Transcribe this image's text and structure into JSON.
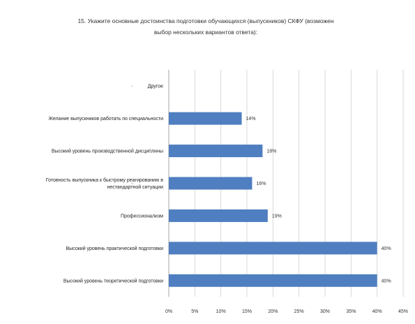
{
  "chart_data": {
    "type": "bar",
    "orientation": "horizontal",
    "title_line1": "15. Укажите основные достоинства подготовки обучающихся (выпускников) СКФУ (возможен",
    "title_line2": "выбор нескольких вариантов ответа):",
    "categories": [
      "Другое",
      "Желание выпускников работать по специальности",
      "Высокий уровень производственной дисциплины",
      [
        "Готовность выпускника к быстрому реагированию в",
        "нестандартной ситуации"
      ],
      "Профессионализм",
      "Высокий уровень практической подготовки",
      "Высокий уровень теоретической подготовки"
    ],
    "values": [
      0,
      14,
      18,
      16,
      19,
      40,
      40
    ],
    "data_labels": [
      "",
      "14%",
      "18%",
      "16%",
      "19%",
      "40%",
      "40%"
    ],
    "xlim": [
      0,
      45
    ],
    "xticks": [
      "0%",
      "5%",
      "10%",
      "15%",
      "20%",
      "25%",
      "30%",
      "35%",
      "40%",
      "45%"
    ],
    "grid": "vertical",
    "bar_color": "#4f7fc0"
  }
}
